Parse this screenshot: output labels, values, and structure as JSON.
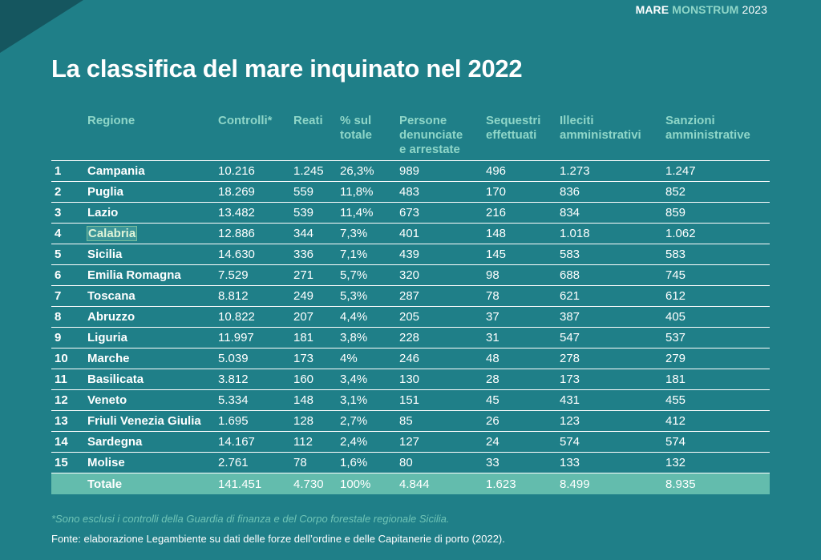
{
  "brand": {
    "part1": "MARE",
    "part2": "MONSTRUM",
    "part3": "2023"
  },
  "title": "La classifica del mare inquinato nel 2022",
  "table": {
    "headers": {
      "rank": "",
      "region": "Regione",
      "controlli": "Controlli*",
      "reati": "Reati",
      "pct_l1": "% sul",
      "pct_l2": "totale",
      "persone_l1": "Persone",
      "persone_l2": "denunciate",
      "persone_l3": "e arrestate",
      "sequestri_l1": "Sequestri",
      "sequestri_l2": "effettuati",
      "illeciti_l1": "Illeciti",
      "illeciti_l2": "amministrativi",
      "sanzioni_l1": "Sanzioni",
      "sanzioni_l2": "amministrative"
    },
    "rows": [
      {
        "rank": "1",
        "region": "Campania",
        "controlli": "10.216",
        "reati": "1.245",
        "pct": "26,3%",
        "persone": "989",
        "sequestri": "496",
        "illeciti": "1.273",
        "sanzioni": "1.247"
      },
      {
        "rank": "2",
        "region": "Puglia",
        "controlli": "18.269",
        "reati": "559",
        "pct": "11,8%",
        "persone": "483",
        "sequestri": "170",
        "illeciti": "836",
        "sanzioni": "852"
      },
      {
        "rank": "3",
        "region": "Lazio",
        "controlli": "13.482",
        "reati": "539",
        "pct": "11,4%",
        "persone": "673",
        "sequestri": "216",
        "illeciti": "834",
        "sanzioni": "859"
      },
      {
        "rank": "4",
        "region": "Calabria",
        "controlli": "12.886",
        "reati": "344",
        "pct": "7,3%",
        "persone": "401",
        "sequestri": "148",
        "illeciti": "1.018",
        "sanzioni": "1.062"
      },
      {
        "rank": "5",
        "region": "Sicilia",
        "controlli": "14.630",
        "reati": "336",
        "pct": "7,1%",
        "persone": "439",
        "sequestri": "145",
        "illeciti": "583",
        "sanzioni": "583"
      },
      {
        "rank": "6",
        "region": "Emilia Romagna",
        "controlli": "7.529",
        "reati": "271",
        "pct": "5,7%",
        "persone": "320",
        "sequestri": "98",
        "illeciti": "688",
        "sanzioni": "745"
      },
      {
        "rank": "7",
        "region": "Toscana",
        "controlli": "8.812",
        "reati": "249",
        "pct": "5,3%",
        "persone": "287",
        "sequestri": "78",
        "illeciti": "621",
        "sanzioni": "612"
      },
      {
        "rank": "8",
        "region": "Abruzzo",
        "controlli": "10.822",
        "reati": "207",
        "pct": "4,4%",
        "persone": "205",
        "sequestri": "37",
        "illeciti": "387",
        "sanzioni": "405"
      },
      {
        "rank": "9",
        "region": "Liguria",
        "controlli": "11.997",
        "reati": "181",
        "pct": "3,8%",
        "persone": "228",
        "sequestri": "31",
        "illeciti": "547",
        "sanzioni": "537"
      },
      {
        "rank": "10",
        "region": "Marche",
        "controlli": "5.039",
        "reati": "173",
        "pct": "4%",
        "persone": "246",
        "sequestri": "48",
        "illeciti": "278",
        "sanzioni": "279"
      },
      {
        "rank": "11",
        "region": "Basilicata",
        "controlli": "3.812",
        "reati": "160",
        "pct": "3,4%",
        "persone": "130",
        "sequestri": "28",
        "illeciti": "173",
        "sanzioni": "181"
      },
      {
        "rank": "12",
        "region": "Veneto",
        "controlli": "5.334",
        "reati": "148",
        "pct": "3,1%",
        "persone": "151",
        "sequestri": "45",
        "illeciti": "431",
        "sanzioni": "455"
      },
      {
        "rank": "13",
        "region": "Friuli Venezia Giulia",
        "controlli": "1.695",
        "reati": "128",
        "pct": "2,7%",
        "persone": "85",
        "sequestri": "26",
        "illeciti": "123",
        "sanzioni": "412"
      },
      {
        "rank": "14",
        "region": "Sardegna",
        "controlli": "14.167",
        "reati": "112",
        "pct": "2,4%",
        "persone": "127",
        "sequestri": "24",
        "illeciti": "574",
        "sanzioni": "574"
      },
      {
        "rank": "15",
        "region": "Molise",
        "controlli": "2.761",
        "reati": "78",
        "pct": "1,6%",
        "persone": "80",
        "sequestri": "33",
        "illeciti": "133",
        "sanzioni": "132"
      }
    ],
    "total": {
      "region": "Totale",
      "controlli": "141.451",
      "reati": "4.730",
      "pct": "100%",
      "persone": "4.844",
      "sequestri": "1.623",
      "illeciti": "8.499",
      "sanzioni": "8.935"
    },
    "highlighted_row": 3
  },
  "note": "*Sono esclusi i controlli della Guardia di finanza e del Corpo forestale regionale Sicilia.",
  "source": "Fonte: elaborazione Legambiente su dati delle forze dell’ordine e delle Capitanerie di porto (2022).",
  "colors": {
    "background": "#1f7f88",
    "header_text": "#8fd6c8",
    "total_row": "#63bcad",
    "corner": "#15565f"
  }
}
